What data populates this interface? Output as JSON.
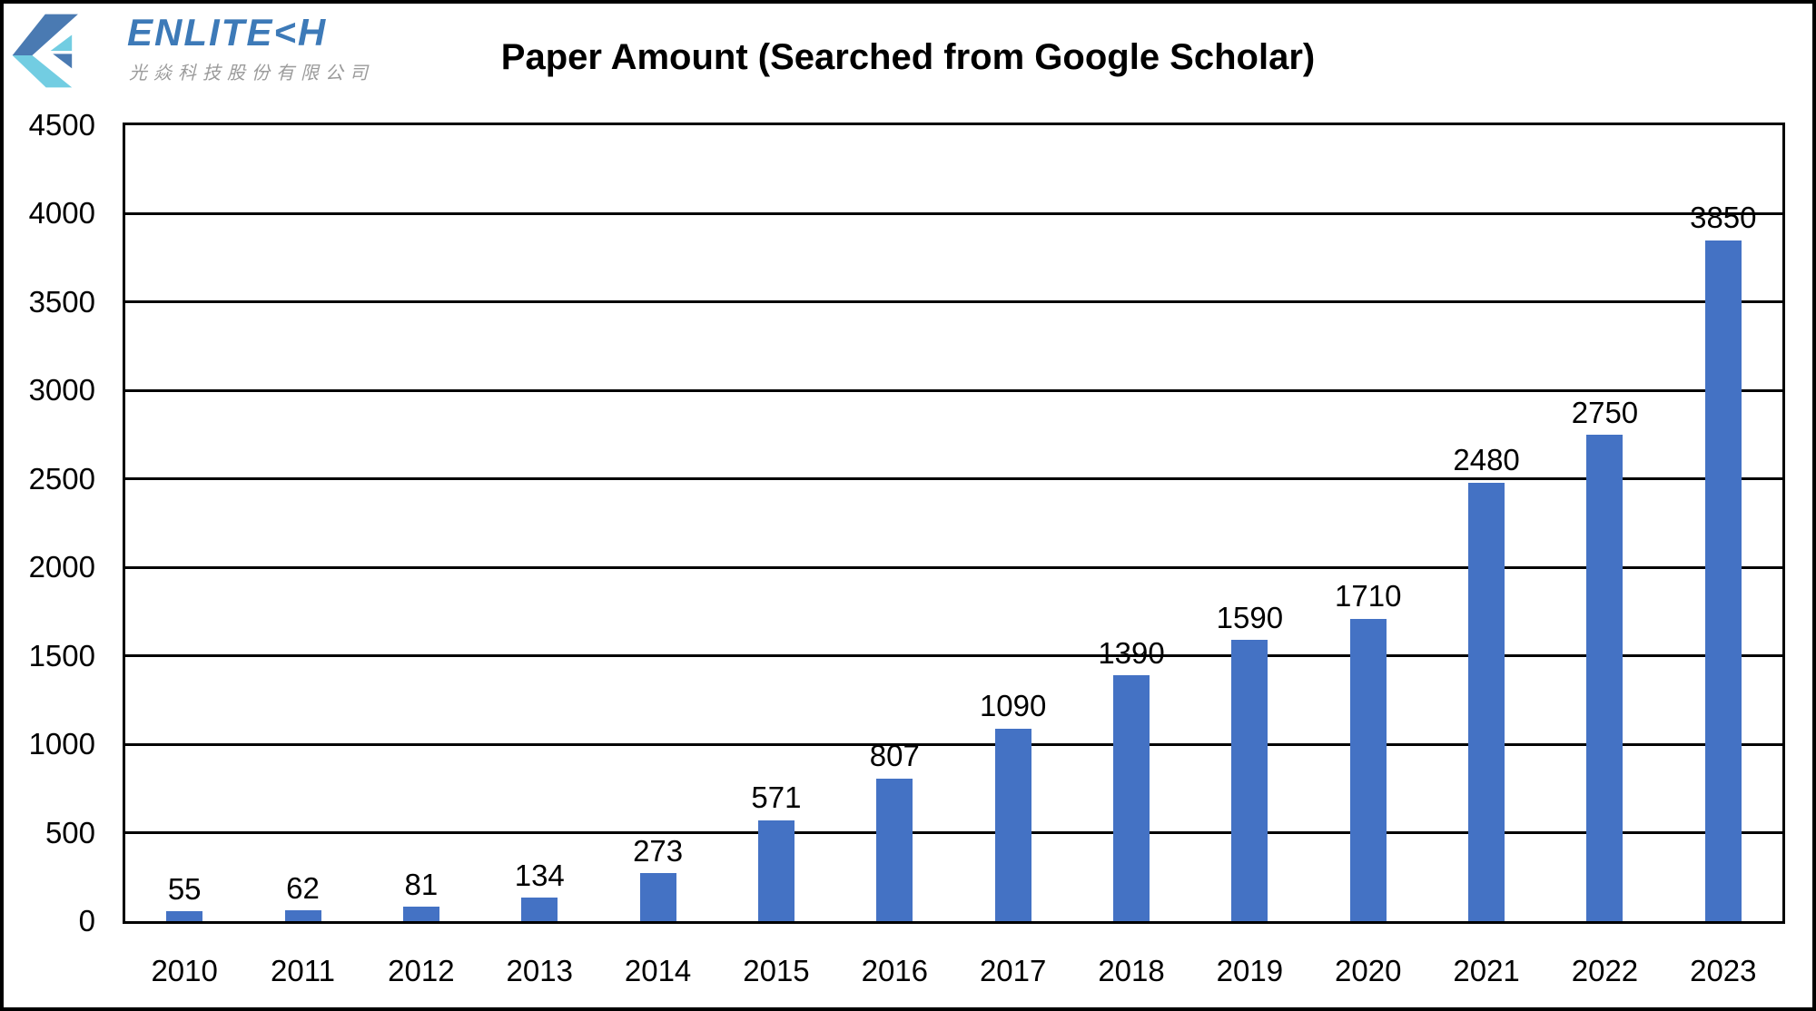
{
  "page": {
    "background": "#ffffff",
    "frame_color": "#000000"
  },
  "logo": {
    "brand": "ENLITE<H",
    "subtitle": "光焱科技股份有限公司",
    "brand_color": "#3d7ab8",
    "subtitle_color": "#9b9b9b",
    "icon": "enlitech-chevron-logo",
    "icon_dark_color": "#4a7ab2",
    "icon_light_color": "#72cde2"
  },
  "chart_data": {
    "type": "bar",
    "title": "Paper Amount (Searched from Google Scholar)",
    "categories": [
      "2010",
      "2011",
      "2012",
      "2013",
      "2014",
      "2015",
      "2016",
      "2017",
      "2018",
      "2019",
      "2020",
      "2021",
      "2022",
      "2023"
    ],
    "values": [
      55,
      62,
      81,
      134,
      273,
      571,
      807,
      1090,
      1390,
      1590,
      1710,
      2480,
      2750,
      3850
    ],
    "xlabel": "",
    "ylabel": "",
    "ylim": [
      0,
      4500
    ],
    "yticks": [
      0,
      500,
      1000,
      1500,
      2000,
      2500,
      3000,
      3500,
      4000,
      4500
    ],
    "bar_color": "#4472C4",
    "grid": "horizontal",
    "grid_color": "#000000",
    "legend": "none",
    "data_labels": true
  }
}
